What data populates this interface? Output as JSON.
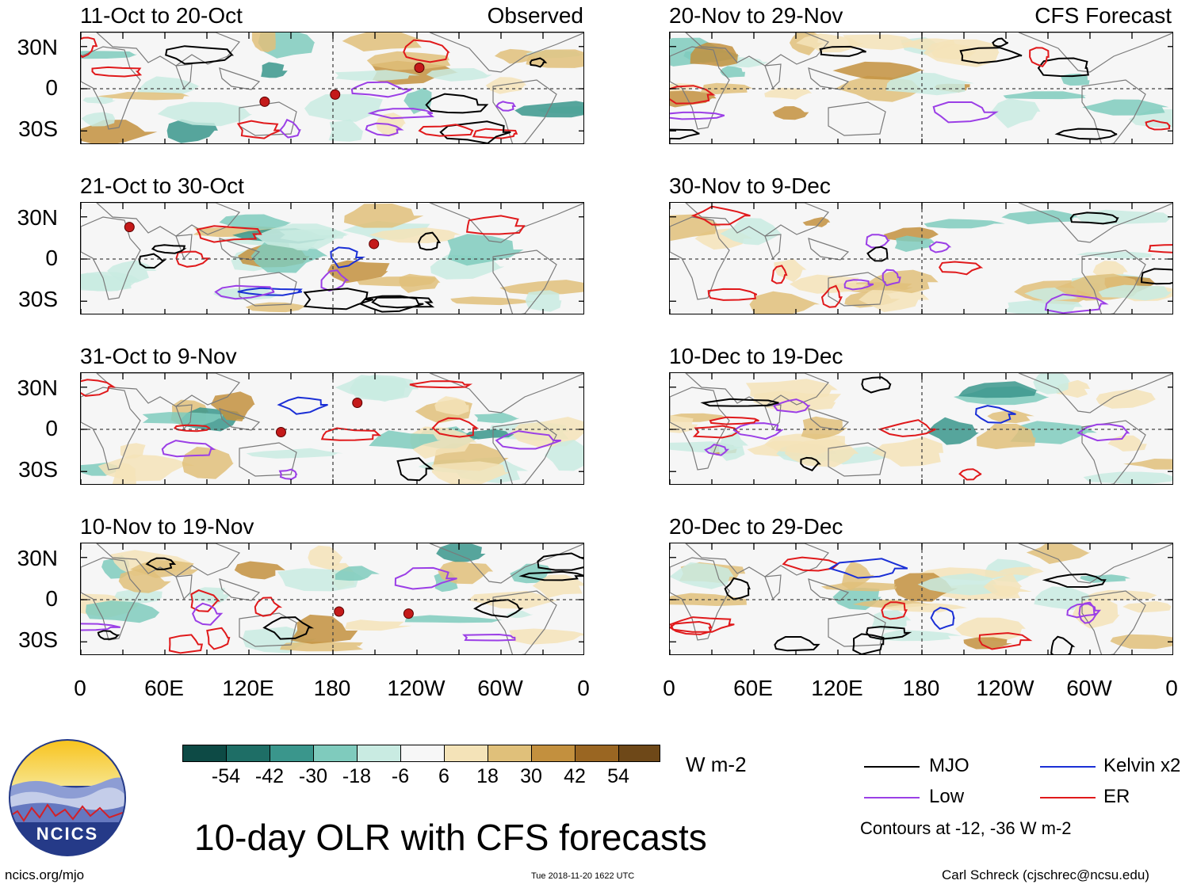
{
  "observed_label": "Observed",
  "forecast_label": "CFS Forecast",
  "chart_data": {
    "type": "heatmap",
    "title": "10-day OLR with CFS forecasts",
    "units": "W m-2",
    "x_ticks": [
      "0",
      "60E",
      "120E",
      "180",
      "120W",
      "60W",
      "0"
    ],
    "y_ticks": [
      "30N",
      "0",
      "30S"
    ],
    "ylim": [
      -40,
      40
    ],
    "panels_observed": [
      {
        "period": "11-Oct to 20-Oct"
      },
      {
        "period": "21-Oct to 30-Oct"
      },
      {
        "period": "31-Oct to 9-Nov"
      },
      {
        "period": "10-Nov to 19-Nov"
      }
    ],
    "panels_forecast": [
      {
        "period": "20-Nov to 29-Nov"
      },
      {
        "period": "30-Nov to 9-Dec"
      },
      {
        "period": "10-Dec to 19-Dec"
      },
      {
        "period": "20-Dec to 29-Dec"
      }
    ],
    "colorbar": {
      "ticks": [
        "-54",
        "-42",
        "-30",
        "-18",
        "-6",
        "6",
        "18",
        "30",
        "42",
        "54"
      ],
      "colors": [
        "#0d4a45",
        "#1e6e66",
        "#3a968c",
        "#7fcbbd",
        "#c9ebe2",
        "#f7f7f7",
        "#f4e3b8",
        "#e0c07a",
        "#c3903e",
        "#9a6622",
        "#6e4818"
      ]
    },
    "legend": [
      {
        "label": "MJO",
        "color": "#000000"
      },
      {
        "label": "Kelvin x2",
        "color": "#1a2fd6"
      },
      {
        "label": "Low",
        "color": "#9b3fe6"
      },
      {
        "label": "ER",
        "color": "#e0191b"
      }
    ],
    "contour_note": "Contours at -12, -36 W m-2"
  },
  "footer": {
    "logo_text": "NCICS",
    "url": "ncics.org/mjo",
    "timestamp": "Tue 2018-11-20 1622 UTC",
    "author": "Carl Schreck (cjschrec@ncsu.edu)"
  }
}
